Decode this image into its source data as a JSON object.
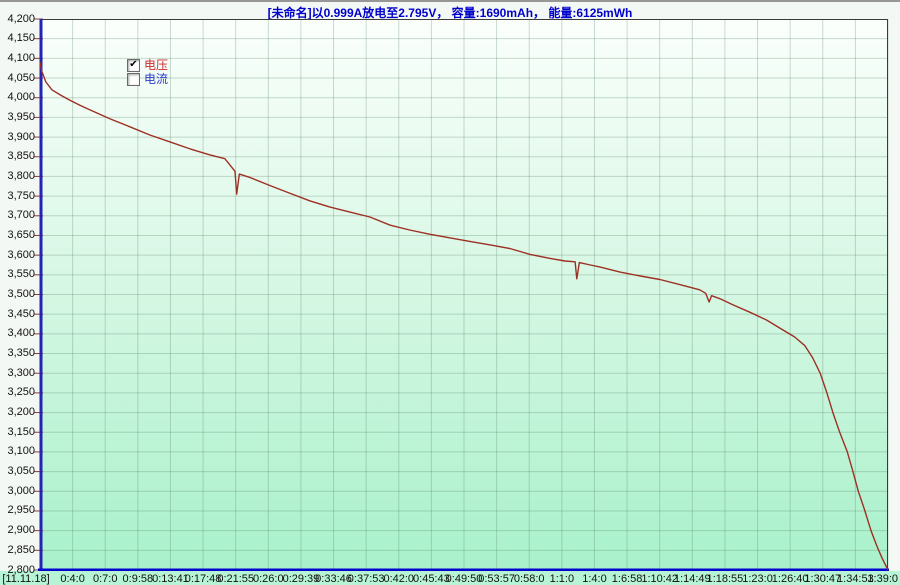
{
  "window": {
    "title": "[未命名]以0.999A放电至2.795V， 容量:1690mAh， 能量:6125mWh"
  },
  "legend": {
    "voltage_label": "电压",
    "voltage_checked": true,
    "current_label": "电流",
    "current_checked": false
  },
  "colors": {
    "title": "#0000cc",
    "voltage_label": "#cc2b2b",
    "current_label": "#2b3ccc",
    "curve": "#9e2f23",
    "grid": "rgba(85,130,103,0.30)",
    "frame": "#3a3a3a",
    "y_axis": "#2424b4",
    "y_tick": "#8a3a3a",
    "x_axis": "#0404cf",
    "plot_bg_top": "#fbfffc",
    "plot_bg_mid": "#d5f7e3",
    "plot_bg_bottom": "#a8f1cb",
    "x_strip_bg": "#b7f3d5"
  },
  "chart_data": {
    "type": "line",
    "title": "[未命名]以0.999A放电至2.795V， 容量:1690mAh， 能量:6125mWh",
    "annotations": {
      "discharge_current": "0.999A",
      "cutoff_voltage": "2.795V",
      "capacity": "1690mAh",
      "energy": "6125mWh"
    },
    "legend_entries": [
      "电压",
      "电流"
    ],
    "grid": true,
    "y_axis": {
      "min": 2800,
      "max": 4200,
      "step": 50,
      "unit": "mV",
      "tick_labels": [
        "4,200",
        "4,150",
        "4,100",
        "4,050",
        "4,000",
        "3,950",
        "3,900",
        "3,850",
        "3,800",
        "3,750",
        "3,700",
        "3,650",
        "3,600",
        "3,550",
        "3,500",
        "3,450",
        "3,400",
        "3,350",
        "3,300",
        "3,250",
        "3,200",
        "3,150",
        "3,100",
        "3,050",
        "3,000",
        "2,950",
        "2,900",
        "2,850",
        "2,800"
      ]
    },
    "x_axis": {
      "origin_label": "[11.11.18]",
      "tick_labels": [
        "0:4:0",
        "0:7:0",
        "0:9:58",
        "0:13:41",
        "0:17:48",
        "0:21:55",
        "0:26:0",
        "0:29:39",
        "0:33:46",
        "0:37:53",
        "0:42:0",
        "0:45:43",
        "0:49:50",
        "0:53:57",
        "0:58:0",
        "1:1:0",
        "1:4:0",
        "1:6:58",
        "1:10:42",
        "1:14:49",
        "1:18:55",
        "1:23:0",
        "1:26:40",
        "1:30:47",
        "1:34:53",
        "1:39:0"
      ]
    },
    "series": [
      {
        "name": "电压",
        "unit": "mV",
        "visible": true,
        "points": [
          [
            0.0,
            4090
          ],
          [
            0.002,
            4068
          ],
          [
            0.007,
            4040
          ],
          [
            0.014,
            4020
          ],
          [
            0.024,
            4007
          ],
          [
            0.035,
            3994
          ],
          [
            0.047,
            3981
          ],
          [
            0.059,
            3969
          ],
          [
            0.083,
            3946
          ],
          [
            0.106,
            3926
          ],
          [
            0.13,
            3905
          ],
          [
            0.153,
            3888
          ],
          [
            0.177,
            3870
          ],
          [
            0.2,
            3855
          ],
          [
            0.218,
            3845
          ],
          [
            0.23,
            3813
          ],
          [
            0.232,
            3755
          ],
          [
            0.235,
            3806
          ],
          [
            0.248,
            3797
          ],
          [
            0.271,
            3777
          ],
          [
            0.295,
            3757
          ],
          [
            0.318,
            3738
          ],
          [
            0.342,
            3722
          ],
          [
            0.366,
            3709
          ],
          [
            0.389,
            3697
          ],
          [
            0.413,
            3676
          ],
          [
            0.436,
            3664
          ],
          [
            0.46,
            3653
          ],
          [
            0.483,
            3644
          ],
          [
            0.507,
            3635
          ],
          [
            0.531,
            3626
          ],
          [
            0.554,
            3617
          ],
          [
            0.578,
            3602
          ],
          [
            0.601,
            3592
          ],
          [
            0.619,
            3585
          ],
          [
            0.631,
            3583
          ],
          [
            0.633,
            3540
          ],
          [
            0.636,
            3581
          ],
          [
            0.649,
            3575
          ],
          [
            0.66,
            3570
          ],
          [
            0.684,
            3557
          ],
          [
            0.708,
            3547
          ],
          [
            0.731,
            3538
          ],
          [
            0.755,
            3525
          ],
          [
            0.778,
            3512
          ],
          [
            0.785,
            3503
          ],
          [
            0.789,
            3481
          ],
          [
            0.792,
            3497
          ],
          [
            0.802,
            3489
          ],
          [
            0.817,
            3474
          ],
          [
            0.837,
            3455
          ],
          [
            0.857,
            3435
          ],
          [
            0.876,
            3410
          ],
          [
            0.89,
            3392
          ],
          [
            0.902,
            3370
          ],
          [
            0.911,
            3340
          ],
          [
            0.92,
            3300
          ],
          [
            0.928,
            3250
          ],
          [
            0.935,
            3200
          ],
          [
            0.943,
            3150
          ],
          [
            0.952,
            3100
          ],
          [
            0.958,
            3055
          ],
          [
            0.965,
            3000
          ],
          [
            0.972,
            2955
          ],
          [
            0.98,
            2900
          ],
          [
            0.987,
            2860
          ],
          [
            0.993,
            2830
          ],
          [
            1.0,
            2800
          ]
        ]
      },
      {
        "name": "电流",
        "unit": "A",
        "visible": false,
        "points": []
      }
    ]
  }
}
